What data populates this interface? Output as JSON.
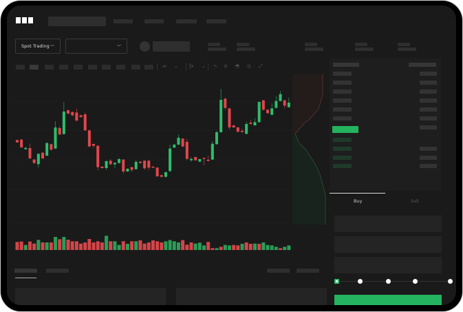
{
  "header": {
    "logo": "OKX"
  },
  "toolbar": {
    "market_select": "Spot Trading",
    "pair_select": ""
  },
  "icons": {
    "dropdown": "chevron-down-icon",
    "tools": [
      "indicator-icon",
      "indicator-icon",
      "fx-icon",
      "line-icon",
      "ruler-icon",
      "camera-icon",
      "settings-icon",
      "fullscreen-icon"
    ],
    "orderbook_views": [
      "orderbook-both-icon",
      "orderbook-bids-icon",
      "orderbook-asks-icon"
    ]
  },
  "trade": {
    "tabs": [
      "Buy",
      "Sell"
    ],
    "active_tab": "Buy",
    "slider_percent": 0
  },
  "colors": {
    "up": "#2ebd6b",
    "down": "#e0474c",
    "buy_button": "#24b35f",
    "background": "#1a1a1a"
  },
  "chart_data": {
    "type": "candlestick",
    "candles_ohlc": [
      [
        17.0,
        17.2,
        15.8,
        16.0
      ],
      [
        17.2,
        17.4,
        13.6,
        13.8
      ],
      [
        13.0,
        13.8,
        12.9,
        13.6
      ],
      [
        13.5,
        15.5,
        8.8,
        9.0
      ],
      [
        8.5,
        8.7,
        6.6,
        7.0
      ],
      [
        6.5,
        11.2,
        5.0,
        11.0
      ],
      [
        11.5,
        11.7,
        8.6,
        9.0
      ],
      [
        10.2,
        16.0,
        10.0,
        15.7
      ],
      [
        15.2,
        15.4,
        12.4,
        12.8
      ],
      [
        13.3,
        25.2,
        13.1,
        22.5
      ],
      [
        22.2,
        23.0,
        19.2,
        19.4
      ],
      [
        19.6,
        33.5,
        19.4,
        29.4
      ],
      [
        30.0,
        30.2,
        28.3,
        28.5
      ],
      [
        29.2,
        29.4,
        27.3,
        27.8
      ],
      [
        29.0,
        30.7,
        25.0,
        25.5
      ],
      [
        27.8,
        28.0,
        26.8,
        27.0
      ],
      [
        28.2,
        29.0,
        21.0,
        21.2
      ],
      [
        21.2,
        21.4,
        14.0,
        14.2
      ],
      [
        15.3,
        15.5,
        13.6,
        14.5
      ],
      [
        14.5,
        14.7,
        3.8,
        5.2
      ],
      [
        5.4,
        5.6,
        4.6,
        4.8
      ],
      [
        4.8,
        8.2,
        4.0,
        7.8
      ],
      [
        8.0,
        8.7,
        6.0,
        6.5
      ],
      [
        6.4,
        7.3,
        4.8,
        7.1
      ],
      [
        7.0,
        9.2,
        6.8,
        8.7
      ],
      [
        8.5,
        8.7,
        2.3,
        3.3
      ],
      [
        3.3,
        4.7,
        3.1,
        4.5
      ],
      [
        5.2,
        5.4,
        3.0,
        4.0
      ],
      [
        4.3,
        8.2,
        4.1,
        7.5
      ],
      [
        7.6,
        7.8,
        6.8,
        7.0
      ],
      [
        8.0,
        8.2,
        4.0,
        4.7
      ],
      [
        8.0,
        8.2,
        4.0,
        5.0
      ],
      [
        5.4,
        5.6,
        4.8,
        5.0
      ],
      [
        5.0,
        5.2,
        1.0,
        1.2
      ],
      [
        1.7,
        2.0,
        0.8,
        1.0
      ],
      [
        1.0,
        3.2,
        0.6,
        3.0
      ],
      [
        3.5,
        15.0,
        3.0,
        13.3
      ],
      [
        13.7,
        15.4,
        13.5,
        15.0
      ],
      [
        15.0,
        19.4,
        14.8,
        18.0
      ],
      [
        17.6,
        18.0,
        14.0,
        14.2
      ],
      [
        16.2,
        17.5,
        8.2,
        8.8
      ],
      [
        8.2,
        9.5,
        7.5,
        8.8
      ],
      [
        9.6,
        9.8,
        8.0,
        8.2
      ],
      [
        7.6,
        8.9,
        7.4,
        8.7
      ],
      [
        9.2,
        9.4,
        6.0,
        8.8
      ],
      [
        8.4,
        10.2,
        7.7,
        7.9
      ],
      [
        8.5,
        16.5,
        8.3,
        15.4
      ],
      [
        15.2,
        21.2,
        15.0,
        20.4
      ],
      [
        20.4,
        39.3,
        20.2,
        34.5
      ],
      [
        35.0,
        35.5,
        30.2,
        31.0
      ],
      [
        30.8,
        31.0,
        21.5,
        22.5
      ],
      [
        23.4,
        23.6,
        22.3,
        22.5
      ],
      [
        22.5,
        22.7,
        20.4,
        20.6
      ],
      [
        21.0,
        22.0,
        20.3,
        20.5
      ],
      [
        19.7,
        25.0,
        19.5,
        24.0
      ],
      [
        24.6,
        25.8,
        23.8,
        24.0
      ],
      [
        23.4,
        26.5,
        23.2,
        24.8
      ],
      [
        24.8,
        33.8,
        24.6,
        33.6
      ],
      [
        34.3,
        34.5,
        29.8,
        30.2
      ],
      [
        30.2,
        30.4,
        28.5,
        28.7
      ],
      [
        28.0,
        33.0,
        27.8,
        30.8
      ],
      [
        31.0,
        36.2,
        30.8,
        34.0
      ],
      [
        34.0,
        38.4,
        33.8,
        37.0
      ],
      [
        34.3,
        34.5,
        30.8,
        32.0
      ],
      [
        31.3,
        35.4,
        31.1,
        33.3
      ]
    ],
    "volumes": [
      35,
      37,
      22,
      37,
      28,
      44,
      33,
      33,
      33,
      57,
      47,
      57,
      45,
      38,
      38,
      28,
      33,
      48,
      33,
      38,
      33,
      62,
      38,
      38,
      22,
      38,
      27,
      38,
      38,
      42,
      28,
      33,
      42,
      38,
      33,
      38,
      43,
      38,
      33,
      43,
      23,
      33,
      28,
      32,
      20,
      35,
      8,
      8,
      14,
      22,
      20,
      22,
      20,
      27,
      33,
      27,
      28,
      27,
      33,
      22,
      20,
      14,
      8,
      14,
      20
    ],
    "volume_up": [
      0,
      0,
      1,
      0,
      0,
      1,
      0,
      1,
      0,
      1,
      0,
      1,
      0,
      0,
      0,
      0,
      0,
      0,
      0,
      0,
      0,
      1,
      0,
      1,
      1,
      0,
      1,
      0,
      1,
      0,
      0,
      0,
      0,
      0,
      0,
      1,
      1,
      1,
      1,
      0,
      0,
      0,
      1,
      1,
      1,
      0,
      0,
      1,
      0,
      1,
      1,
      0,
      0,
      1,
      0,
      0,
      1,
      0,
      1,
      1,
      1,
      1,
      0,
      1,
      1
    ],
    "grid": true
  }
}
